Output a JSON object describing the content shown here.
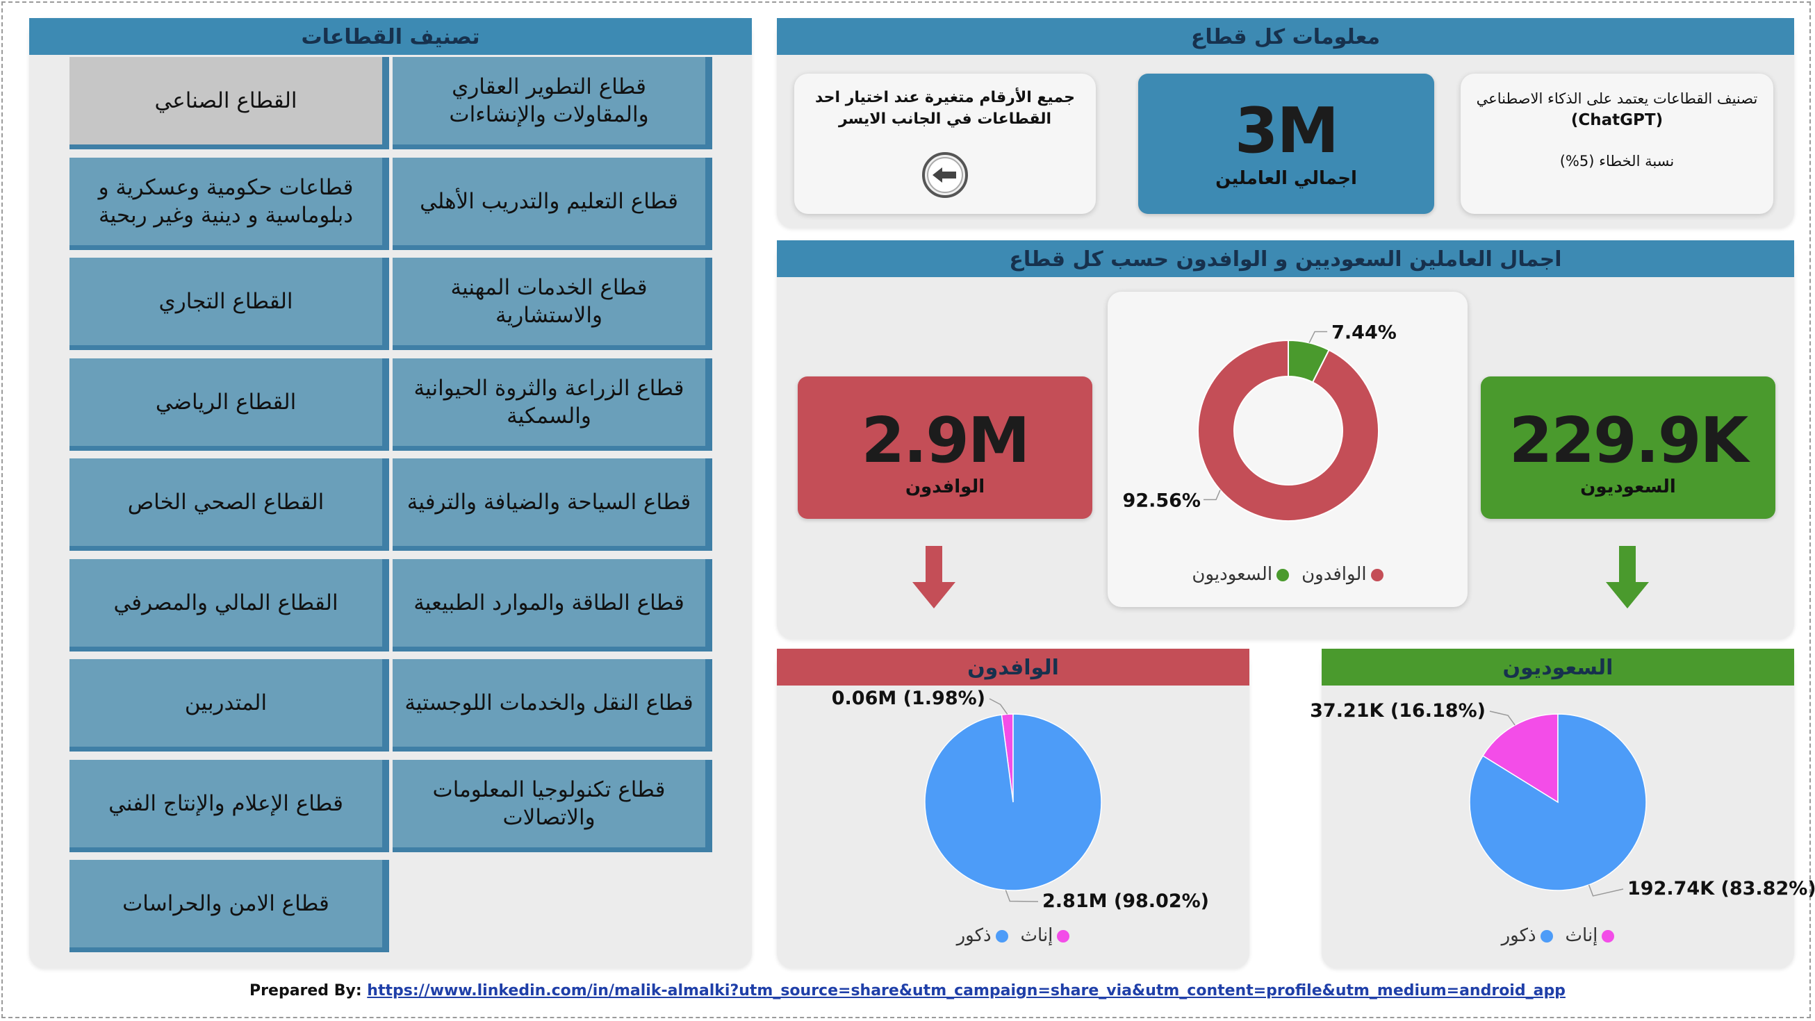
{
  "left_panel": {
    "title": "تصنيف القطاعات",
    "sectors": [
      "القطاع الصناعي",
      "قطاع التطوير العقاري والمقاولات والإنشاءات",
      "قطاعات حكومية وعسكرية و دبلوماسية و دينية وغير ربحية",
      "قطاع التعليم والتدريب الأهلي",
      "القطاع التجاري",
      "قطاع الخدمات المهنية والاستشارية",
      "القطاع الرياضي",
      "قطاع الزراعة والثروة الحيوانية والسمكية",
      "القطاع الصحي الخاص",
      "قطاع السياحة والضيافة والترفية",
      "القطاع المالي والمصرفي",
      "قطاع الطاقة والموارد الطبيعية",
      "المتدربين",
      "قطاع النقل والخدمات اللوجستية",
      "قطاع الإعلام والإنتاج الفني",
      "قطاع تكنولوجيا المعلومات والاتصالات",
      "قطاع الامن والحراسات"
    ],
    "selected_sector": "القطاع الصناعي"
  },
  "info_panel": {
    "title": "معلومات كل قطاع",
    "note_line1": "جميع الأرقام متغيرة عند اختيار احد",
    "note_line2": "القطاعات في الجانب الايسر",
    "total_value": "3M",
    "total_label": "اجمالي العاملين",
    "ai_line1": "تصنيف القطاعات يعتمد على الذكاء الاصطناعي",
    "ai_line2": "(ChatGPT)",
    "ai_line3": "نسبة الخطاء (5%)"
  },
  "workers_panel": {
    "title": "اجمال العاملين السعوديين و الوافدون حسب كل قطاع",
    "expats_value": "2.9M",
    "expats_label": "الوافدون",
    "saudis_value": "229.9K",
    "saudis_label": "السعوديون"
  },
  "chart_data": [
    {
      "type": "pie",
      "variant": "donut",
      "categories": [
        "الوافدون",
        "السعوديون"
      ],
      "values": [
        92.56,
        7.44
      ],
      "data_labels": [
        "92.56%",
        "7.44%"
      ],
      "colors": [
        "#c44e57",
        "#4a9a2d"
      ],
      "legend_placement": "bottom"
    },
    {
      "type": "pie",
      "title": "الوافدون",
      "categories": [
        "ذكور",
        "إناث"
      ],
      "values": [
        2.81,
        0.06
      ],
      "data_labels": [
        "2.81M (98.02%)",
        "0.06M (1.98%)"
      ],
      "colors": [
        "#4d9cf8",
        "#f34de8"
      ],
      "legend_placement": "bottom"
    },
    {
      "type": "pie",
      "title": "السعوديون",
      "categories": [
        "ذكور",
        "إناث"
      ],
      "values": [
        192.74,
        37.21
      ],
      "data_labels": [
        "192.74K (83.82%)",
        "37.21K (16.18%)"
      ],
      "colors": [
        "#4d9cf8",
        "#f34de8"
      ],
      "legend_placement": "bottom"
    }
  ],
  "footer": {
    "prefix": "Prepared By:",
    "link": "https://www.linkedin.com/in/malik-almalki?utm_source=share&utm_campaign=share_via&utm_content=profile&utm_medium=android_app"
  },
  "colors": {
    "header_blue": "#3d8ab3",
    "expat_red": "#c44e57",
    "saudi_green": "#4a9a2d",
    "male_blue": "#4d9cf8",
    "female_pink": "#f34de8"
  },
  "icons": [
    "back-arrow-icon",
    "down-arrow-icon"
  ]
}
